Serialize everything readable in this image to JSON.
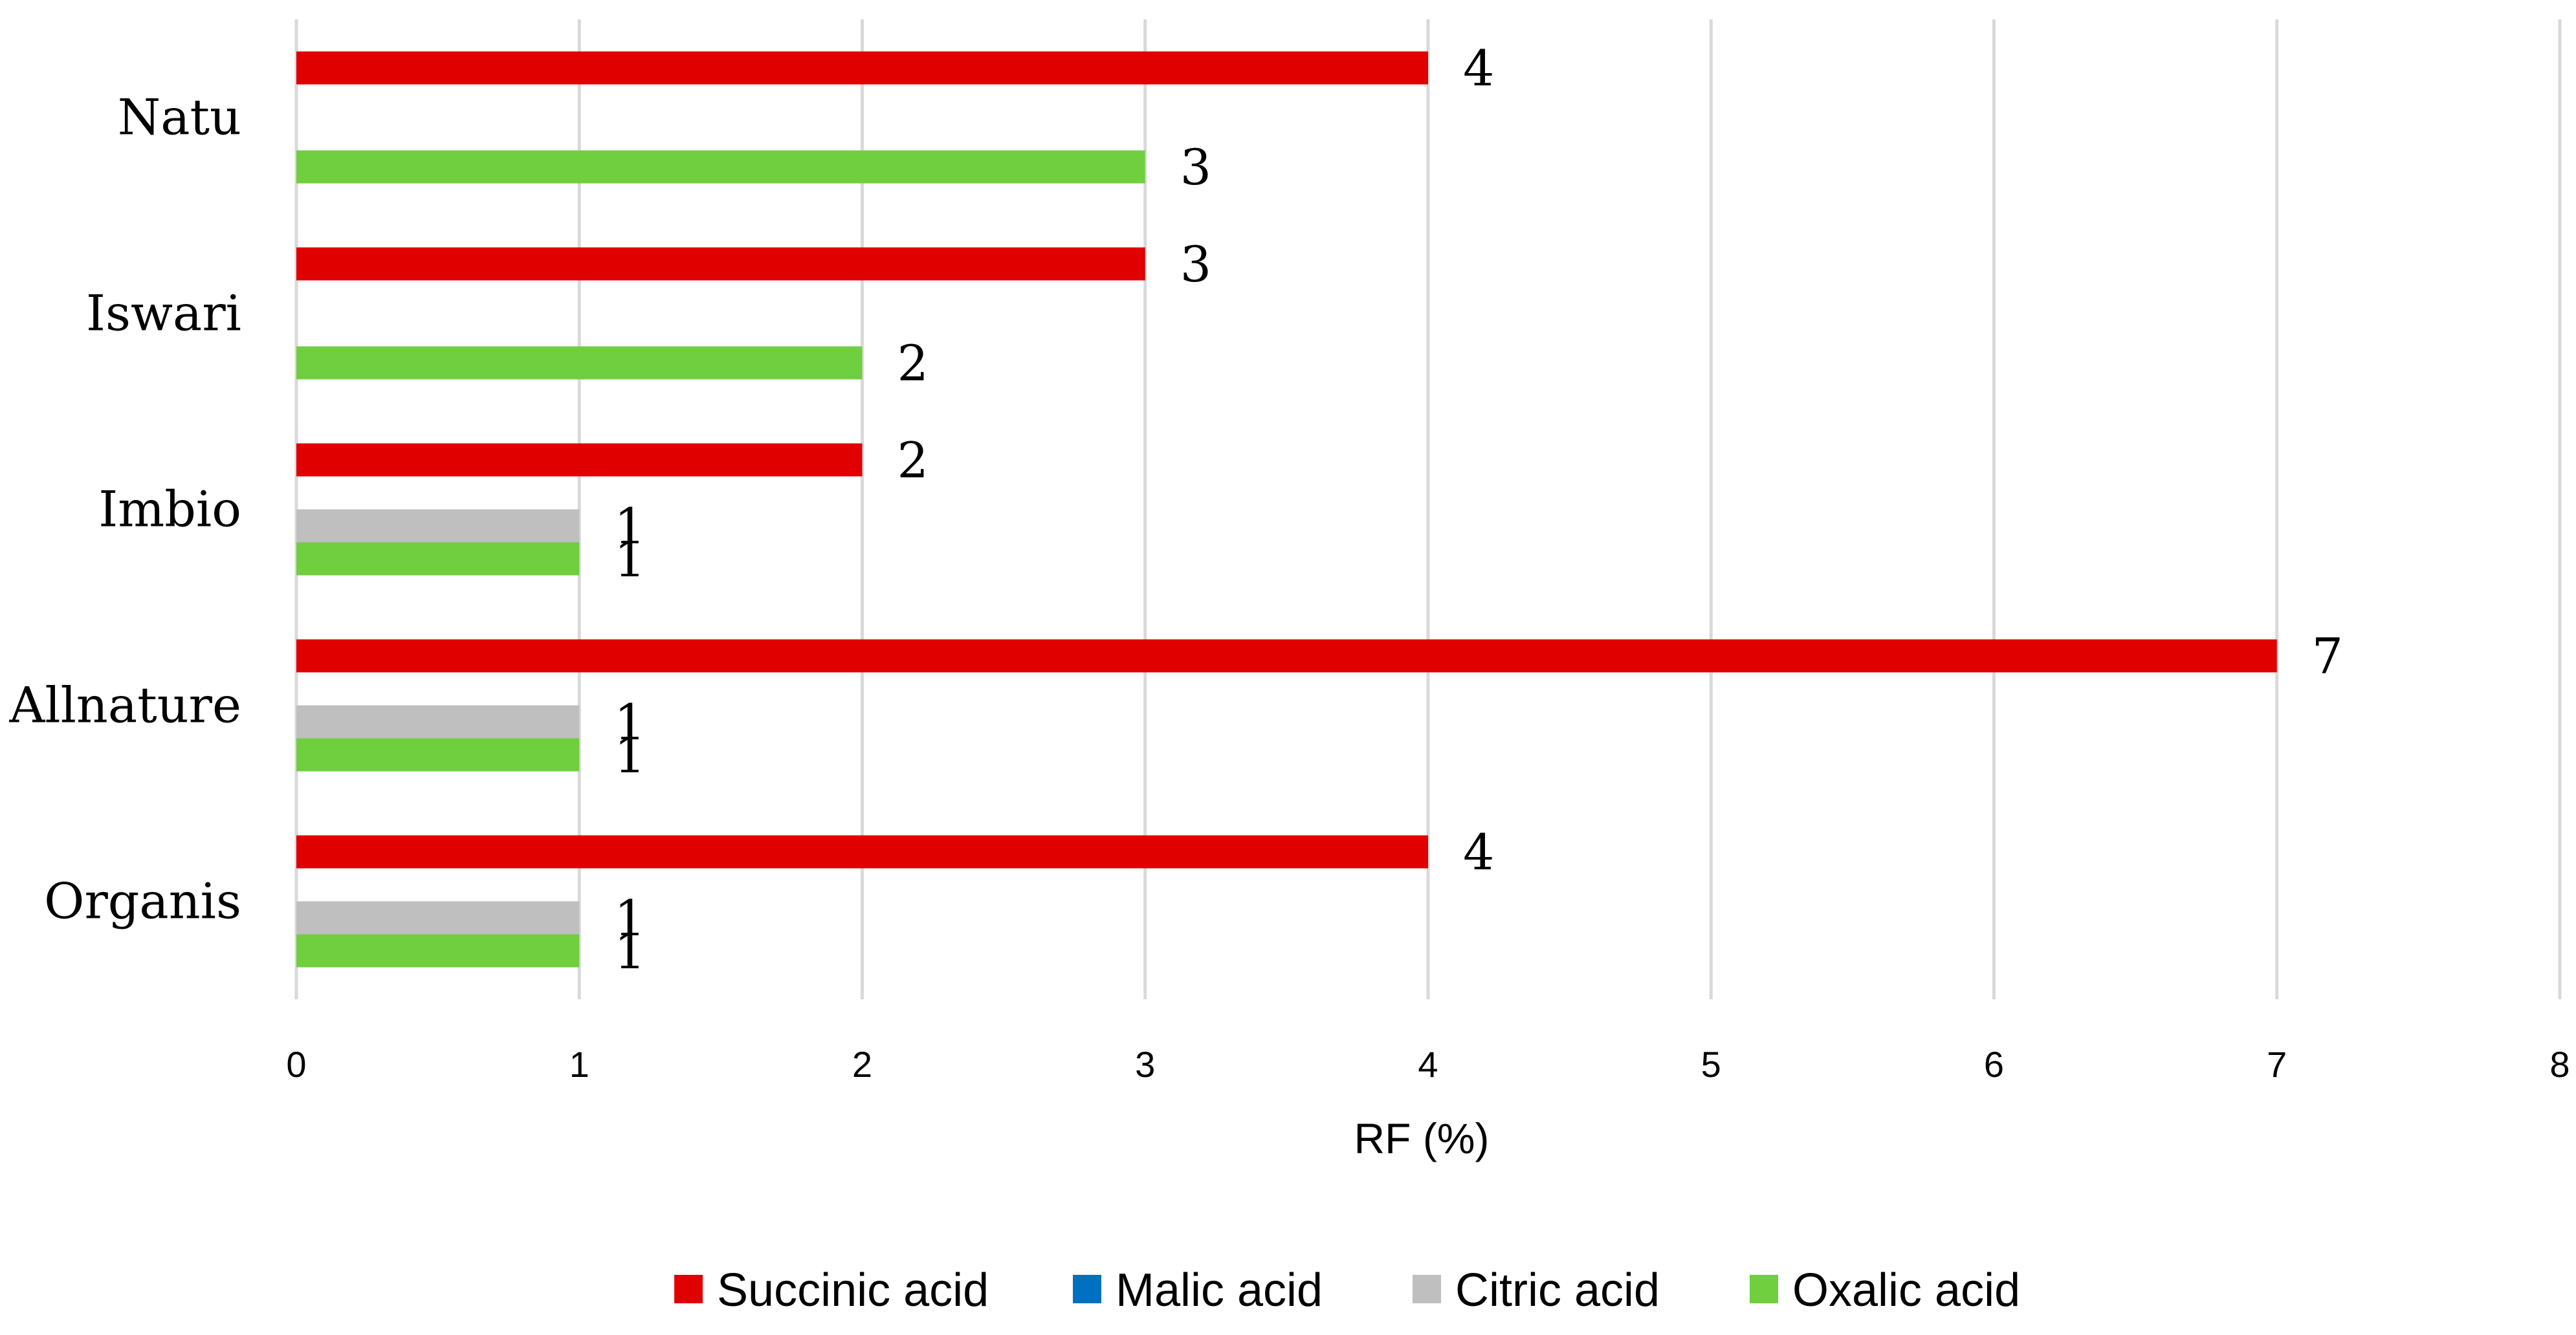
{
  "chart_data": {
    "type": "bar",
    "orientation": "horizontal",
    "categories": [
      "Natu",
      "Iswari",
      "Imbio",
      "Allnature",
      "Organis"
    ],
    "series": [
      {
        "name": "Succinic acid",
        "color": "#e00000",
        "values": [
          4,
          3,
          2,
          7,
          4
        ]
      },
      {
        "name": "Malic acid",
        "color": "#0070c0",
        "values": [
          null,
          null,
          null,
          null,
          null
        ]
      },
      {
        "name": "Citric acid",
        "color": "#bfbfbf",
        "values": [
          null,
          null,
          1,
          1,
          1
        ]
      },
      {
        "name": "Oxalic acid",
        "color": "#6fcf3f",
        "values": [
          3,
          2,
          1,
          1,
          1
        ]
      }
    ],
    "xlabel": "RF (%)",
    "ylabel": "",
    "xlim": [
      0,
      8
    ],
    "xticks": [
      "0",
      "1",
      "2",
      "3",
      "4",
      "5",
      "6",
      "7",
      "8"
    ],
    "grid": "vertical",
    "data_labels": true,
    "legend_position": "bottom"
  }
}
